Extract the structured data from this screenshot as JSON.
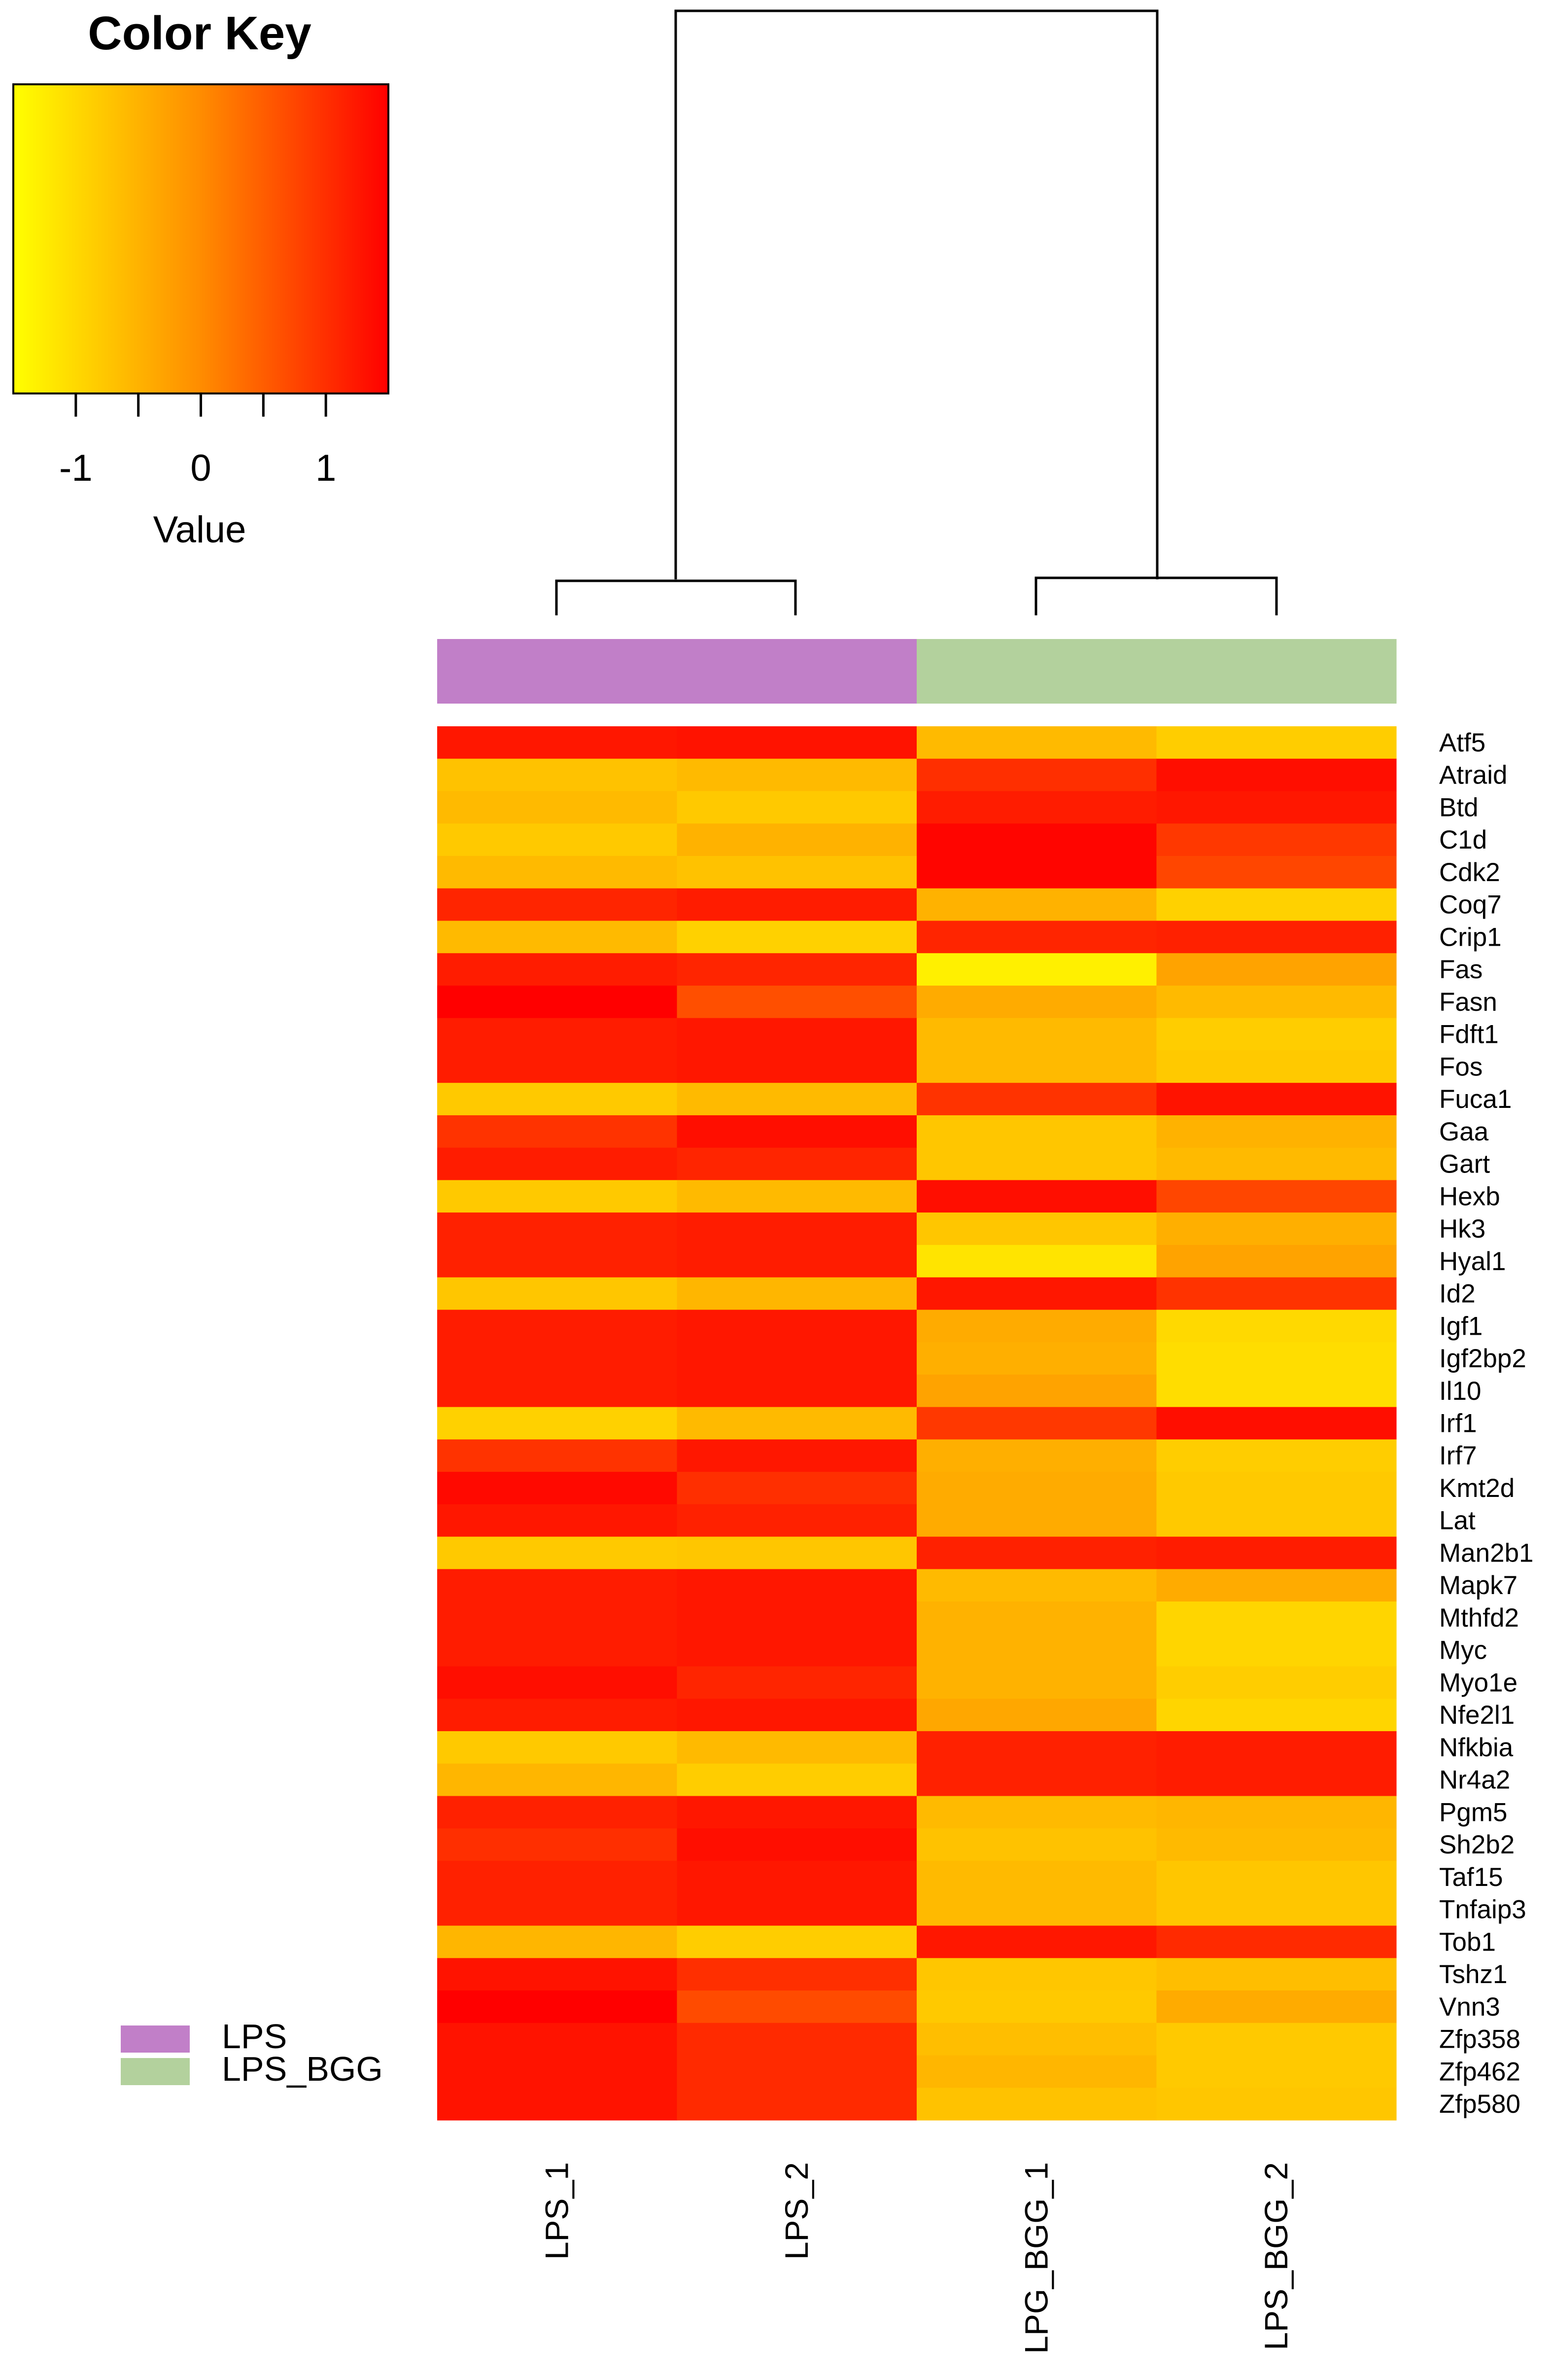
{
  "chart_data": {
    "type": "heatmap",
    "color_key": {
      "title": "Color Key",
      "xlabel": "Value",
      "range": [
        -1.5,
        1.5
      ],
      "ticks": [
        -1,
        -0.5,
        0,
        0.5,
        1
      ],
      "tick_labels": [
        "-1",
        "0",
        "1"
      ],
      "tick_label_values": [
        -1,
        0,
        1
      ],
      "colors": [
        "#ffff00",
        "#ff8c00",
        "#ff0000"
      ]
    },
    "columns": [
      "LPS_1",
      "LPS_2",
      "LPG_BGG_1",
      "LPS_BGG_2"
    ],
    "column_groups": [
      "LPS",
      "LPS",
      "LPS_BGG",
      "LPS_BGG"
    ],
    "legend": [
      {
        "label": "LPS",
        "color": "#c17fc8"
      },
      {
        "label": "LPS_BGG",
        "color": "#b3d19d"
      }
    ],
    "rows": [
      "Atf5",
      "Atraid",
      "Btd",
      "C1d",
      "Cdk2",
      "Coq7",
      "Crip1",
      "Fas",
      "Fasn",
      "Fdft1",
      "Fos",
      "Fuca1",
      "Gaa",
      "Gart",
      "Hexb",
      "Hk3",
      "Hyal1",
      "Id2",
      "Igf1",
      "Igf2bp2",
      "Il10",
      "Irf1",
      "Irf7",
      "Kmt2d",
      "Lat",
      "Man2b1",
      "Mapk7",
      "Mthfd2",
      "Myc",
      "Myo1e",
      "Nfe2l1",
      "Nfkbia",
      "Nr4a2",
      "Pgm5",
      "Sh2b2",
      "Taf15",
      "Tnfaip3",
      "Tob1",
      "Tshz1",
      "Vnn3",
      "Zfp358",
      "Zfp462",
      "Zfp580"
    ],
    "values": [
      [
        1.25,
        1.3,
        -0.6,
        -0.85
      ],
      [
        -0.7,
        -0.6,
        1.0,
        1.35
      ],
      [
        -0.6,
        -0.8,
        1.2,
        1.25
      ],
      [
        -0.8,
        -0.5,
        1.45,
        0.9
      ],
      [
        -0.6,
        -0.7,
        1.45,
        0.75
      ],
      [
        1.1,
        1.2,
        -0.5,
        -0.9
      ],
      [
        -0.6,
        -0.9,
        1.1,
        1.15
      ],
      [
        1.2,
        1.1,
        -1.3,
        -0.3
      ],
      [
        1.5,
        0.65,
        -0.4,
        -0.6
      ],
      [
        1.2,
        1.25,
        -0.6,
        -0.85
      ],
      [
        1.2,
        1.25,
        -0.6,
        -0.8
      ],
      [
        -0.8,
        -0.6,
        0.95,
        1.3
      ],
      [
        0.95,
        1.35,
        -0.75,
        -0.5
      ],
      [
        1.2,
        1.1,
        -0.75,
        -0.6
      ],
      [
        -0.8,
        -0.6,
        1.35,
        0.75
      ],
      [
        1.15,
        1.2,
        -0.75,
        -0.45
      ],
      [
        1.15,
        1.2,
        -1.15,
        -0.3
      ],
      [
        -0.75,
        -0.55,
        1.25,
        0.95
      ],
      [
        1.2,
        1.25,
        -0.4,
        -1.0
      ],
      [
        1.2,
        1.25,
        -0.45,
        -1.05
      ],
      [
        1.2,
        1.25,
        -0.3,
        -1.05
      ],
      [
        -0.9,
        -0.6,
        0.9,
        1.35
      ],
      [
        0.95,
        1.25,
        -0.45,
        -0.85
      ],
      [
        1.4,
        1.0,
        -0.4,
        -0.8
      ],
      [
        1.25,
        1.15,
        -0.4,
        -0.8
      ],
      [
        -0.8,
        -0.75,
        1.15,
        1.2
      ],
      [
        1.2,
        1.25,
        -0.6,
        -0.4
      ],
      [
        1.2,
        1.25,
        -0.5,
        -0.95
      ],
      [
        1.2,
        1.25,
        -0.5,
        -0.95
      ],
      [
        1.35,
        1.1,
        -0.5,
        -0.85
      ],
      [
        1.2,
        1.25,
        -0.35,
        -0.95
      ],
      [
        -0.8,
        -0.6,
        1.15,
        1.2
      ],
      [
        -0.55,
        -0.85,
        1.15,
        1.2
      ],
      [
        1.15,
        1.25,
        -0.6,
        -0.55
      ],
      [
        1.0,
        1.35,
        -0.7,
        -0.6
      ],
      [
        1.15,
        1.25,
        -0.6,
        -0.75
      ],
      [
        1.15,
        1.25,
        -0.6,
        -0.75
      ],
      [
        -0.55,
        -0.85,
        1.25,
        1.05
      ],
      [
        1.3,
        1.0,
        -0.75,
        -0.65
      ],
      [
        1.55,
        0.7,
        -0.8,
        -0.4
      ],
      [
        1.3,
        1.05,
        -0.65,
        -0.8
      ],
      [
        1.3,
        1.05,
        -0.55,
        -0.8
      ],
      [
        1.3,
        1.05,
        -0.7,
        -0.75
      ]
    ]
  }
}
